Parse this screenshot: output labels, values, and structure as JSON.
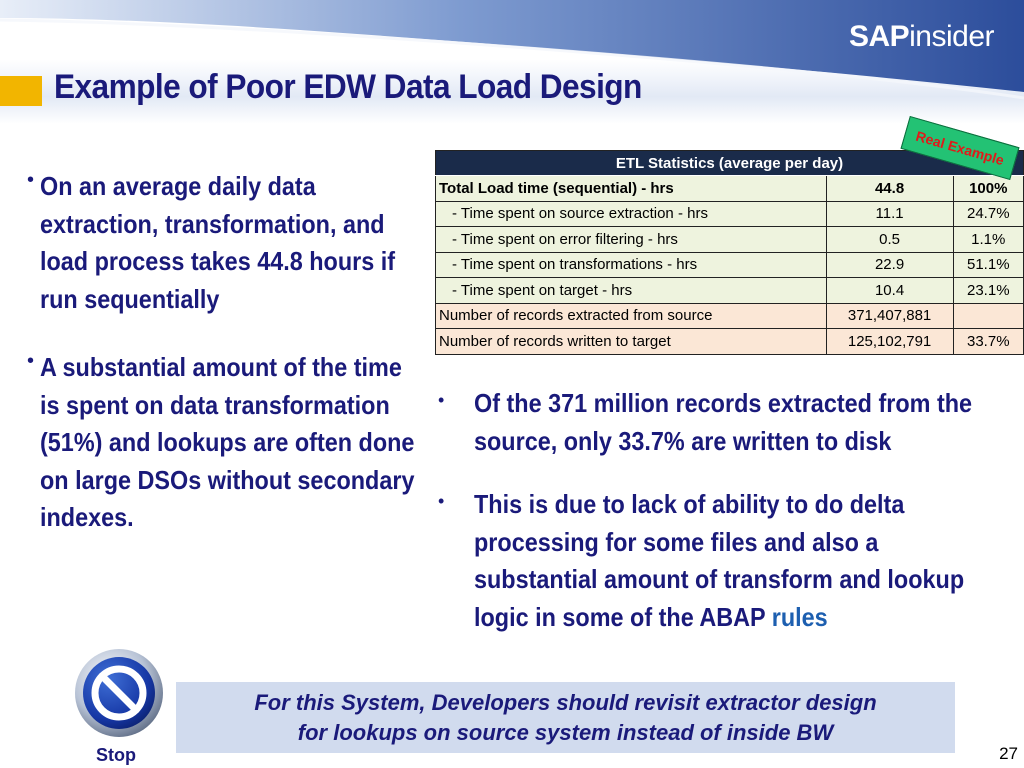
{
  "brand": {
    "bold": "SAP",
    "rest": "insider"
  },
  "title": "Example of Poor EDW Data Load Design",
  "left_bullets": [
    {
      "text": "On an average daily data extraction, transformation, and load process takes 44.8 hours if run sequentially"
    },
    {
      "text": "A substantial amount of the time is spent on data transformation (51%) and lookups are often done on large DSOs without secondary indexes."
    }
  ],
  "table": {
    "header": "ETL Statistics (average per day)",
    "rows": [
      {
        "label": "Total Load time (sequential) - hrs",
        "value": "44.8",
        "pct": "100%"
      },
      {
        "label": "- Time spent on source extraction - hrs",
        "value": "11.1",
        "pct": "24.7%"
      },
      {
        "label": "- Time spent on error filtering - hrs",
        "value": "0.5",
        "pct": "1.1%"
      },
      {
        "label": "- Time spent on transformations - hrs",
        "value": "22.9",
        "pct": "51.1%"
      },
      {
        "label": "- Time spent on target - hrs",
        "value": "10.4",
        "pct": "23.1%"
      },
      {
        "label": "Number of records extracted from source",
        "value": "371,407,881",
        "pct": ""
      },
      {
        "label": "Number of records written to target",
        "value": "125,102,791",
        "pct": "33.7%"
      }
    ]
  },
  "badge": "Real Example",
  "right_bullets": [
    {
      "text": "Of the 371 million records extracted from the source, only 33.7% are written to disk",
      "tail": ""
    },
    {
      "text": "This is due to lack of ability to do delta processing for some files and also a substantial amount of transform and lookup logic in some of the ABAP ",
      "tail": "rules"
    }
  ],
  "stop_label": "Stop",
  "callout": {
    "line1": "For this System, Developers should revisit extractor design",
    "line2": "for lookups on source system instead of inside BW"
  },
  "page_number": "27",
  "colors": {
    "title": "#1a1a7a",
    "accent": "#f2b500",
    "table_header": "#1a2b4a",
    "badge_bg": "#23c274",
    "badge_text": "#e11a1a",
    "callout_bg": "#d1dbee"
  },
  "icons": {
    "stop": "stop-sign-icon"
  }
}
